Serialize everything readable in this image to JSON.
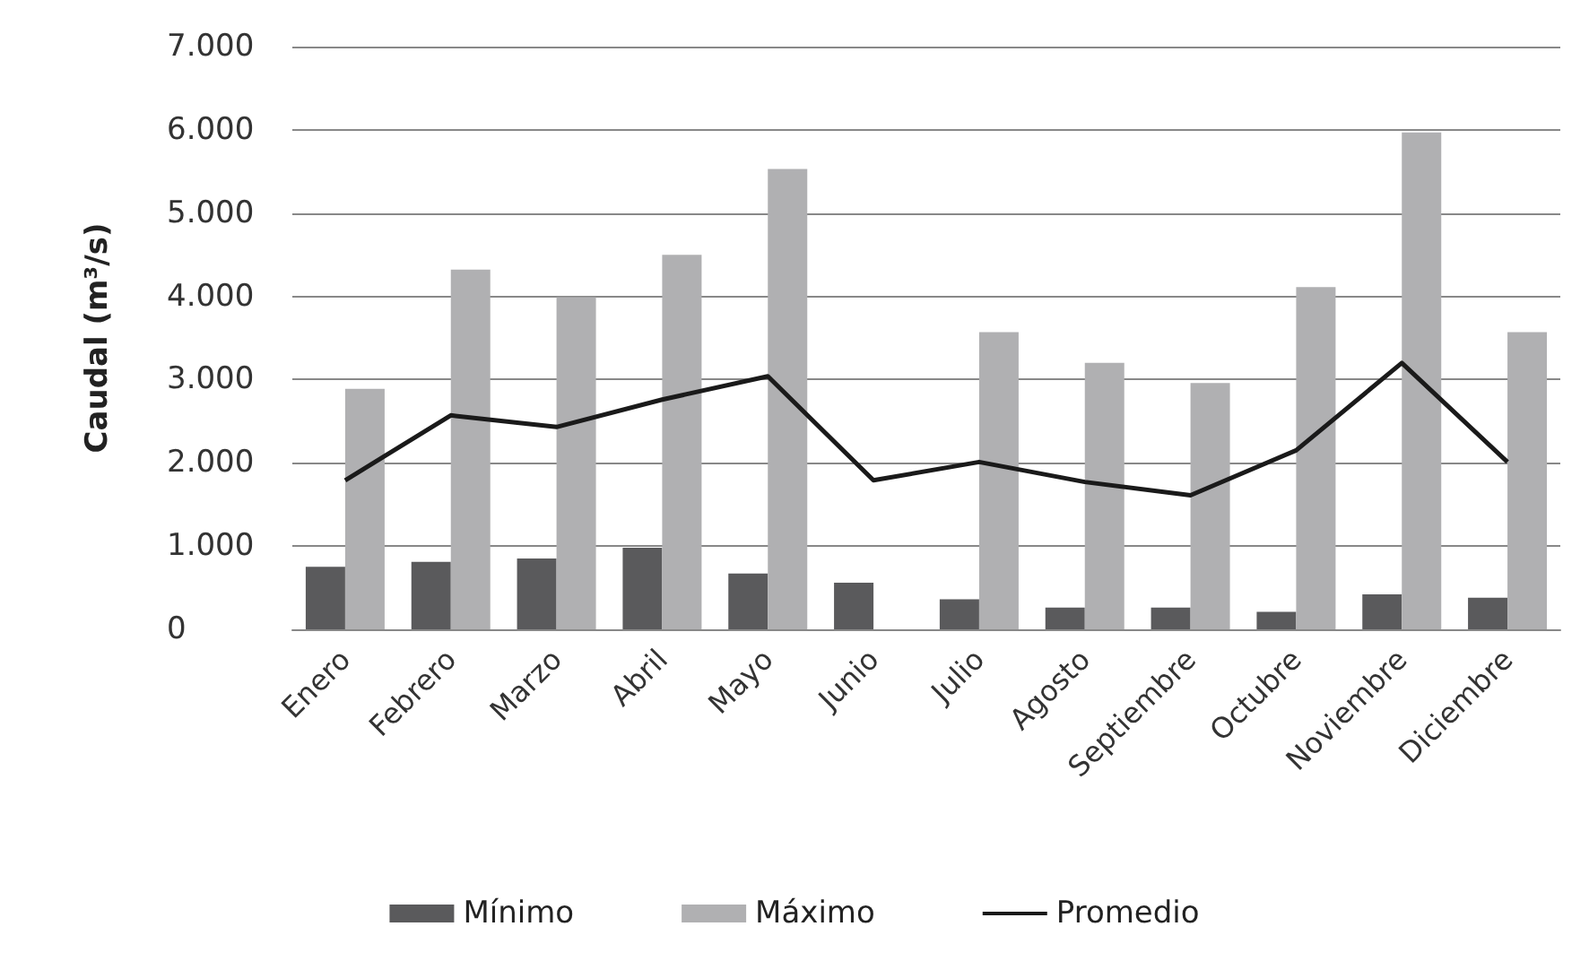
{
  "chart_data": {
    "type": "bar",
    "ylabel": "Caudal (m³/s)",
    "categories": [
      "Enero",
      "Febrero",
      "Marzo",
      "Abril",
      "Mayo",
      "Junio",
      "Julio",
      "Agosto",
      "Septiembre",
      "Octubre",
      "Noviembre",
      "Diciembre"
    ],
    "series": [
      {
        "name": "Mínimo",
        "color": "#5a5a5c",
        "values": [
          750,
          810,
          850,
          980,
          670,
          560,
          360,
          260,
          260,
          210,
          420,
          380
        ]
      },
      {
        "name": "Máximo",
        "color": "#b0b0b2",
        "values": [
          2890,
          4320,
          3990,
          4500,
          5530,
          null,
          3570,
          3200,
          2960,
          4110,
          5970,
          3570
        ]
      },
      {
        "name": "Promedio",
        "type": "line",
        "color": "#1a1a1a",
        "values": [
          1790,
          2570,
          2430,
          2760,
          3040,
          1790,
          2010,
          1770,
          1610,
          2150,
          3200,
          2010
        ]
      }
    ],
    "ylim": [
      0,
      7000
    ],
    "yticks": [
      {
        "value": 0,
        "label": "0"
      },
      {
        "value": 1000,
        "label": "1.000"
      },
      {
        "value": 2000,
        "label": "2.000"
      },
      {
        "value": 3000,
        "label": "3.000"
      },
      {
        "value": 4000,
        "label": "4.000"
      },
      {
        "value": 5000,
        "label": "5.000"
      },
      {
        "value": 6000,
        "label": "6.000"
      },
      {
        "value": 7000,
        "label": "7.000"
      }
    ],
    "grid": "y",
    "legend": "bottom",
    "line_style": "solid"
  }
}
